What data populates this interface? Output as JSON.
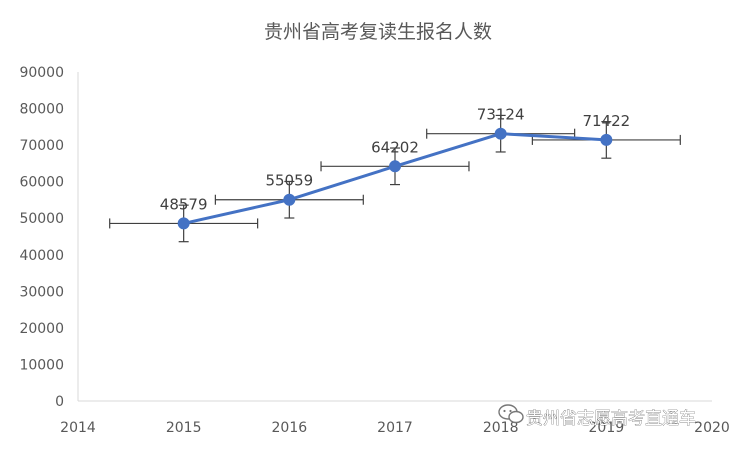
{
  "chart_data": {
    "type": "line",
    "title": "贵州省高考复读生报名人数",
    "xlabel": "",
    "ylabel": "",
    "xlim": [
      2014,
      2020
    ],
    "ylim": [
      0,
      90000
    ],
    "x_ticks": [
      "2014",
      "2015",
      "2016",
      "2017",
      "2018",
      "2019",
      "2020"
    ],
    "y_ticks": [
      "0",
      "10000",
      "20000",
      "30000",
      "40000",
      "50000",
      "60000",
      "70000",
      "80000",
      "90000"
    ],
    "series": [
      {
        "x": [
          2015,
          2016,
          2017,
          2018,
          2019
        ],
        "values": [
          48579,
          55059,
          64202,
          73124,
          71422
        ],
        "data_labels": [
          "48579",
          "55059",
          "64202",
          "73124",
          "71422"
        ],
        "x_error": 0.7,
        "y_error": 5000,
        "color": "#4472C4"
      }
    ],
    "grid": false,
    "legend": "none"
  },
  "watermark": {
    "text": "贵州省志愿高考直通车",
    "icon": "wechat-icon"
  }
}
